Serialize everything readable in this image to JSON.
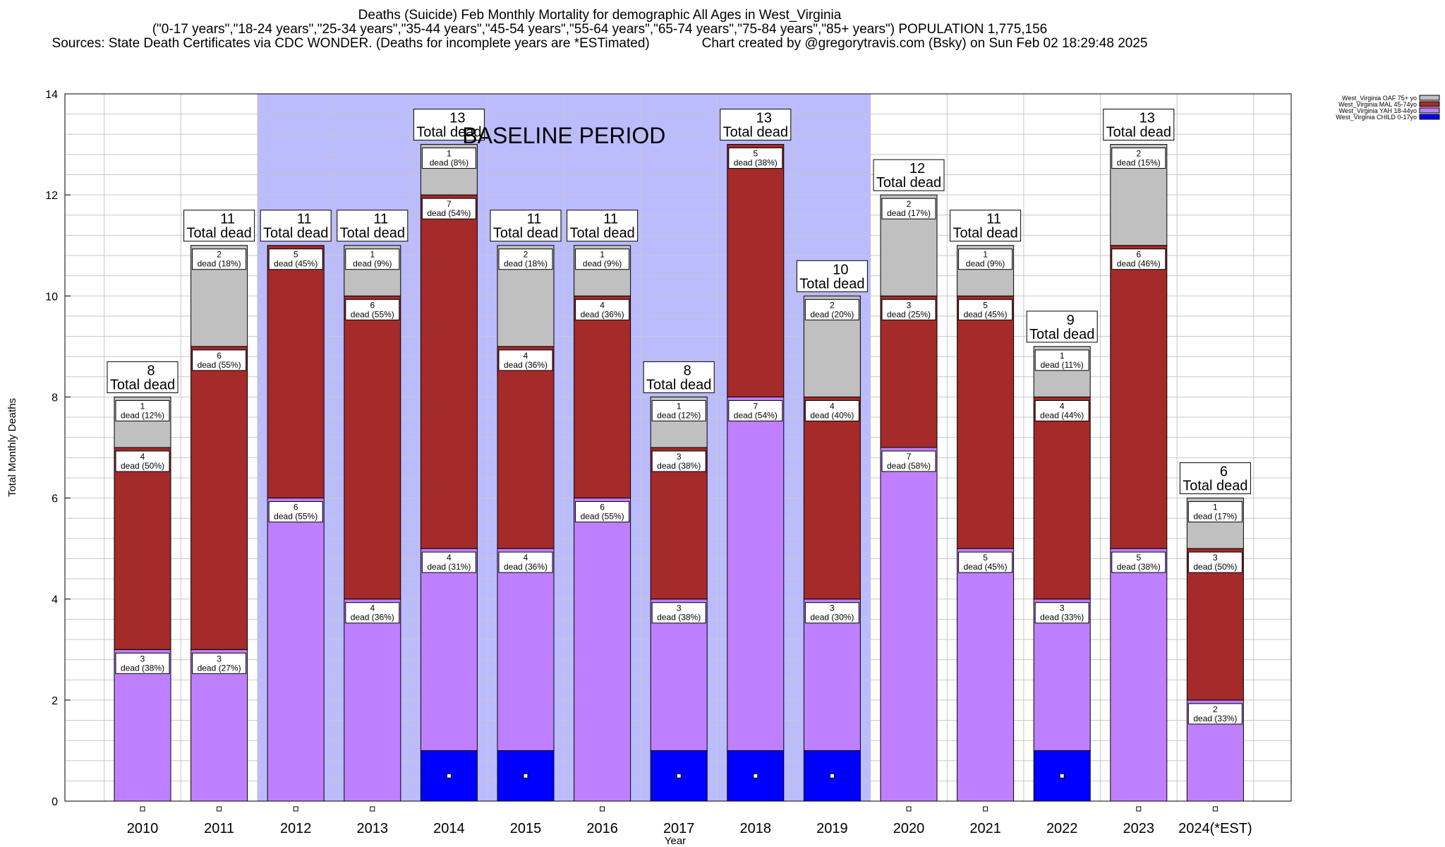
{
  "title_lines": [
    "Deaths (Suicide) Feb Monthly Mortality for demographic All Ages in West_Virginia",
    "(\"0-17 years\",\"18-24 years\",\"25-34 years\",\"35-44 years\",\"45-54 years\",\"55-64 years\",\"65-74 years\",\"75-84 years\",\"85+ years\") POPULATION 1,775,156",
    "Sources: State Death Certificates via CDC WONDER. (Deaths for incomplete years are *ESTimated)              Chart created by @gregorytravis.com (Bsky) on Sun Feb 02 18:29:48 2025"
  ],
  "colors": {
    "child": "#0000ff",
    "yah": "#bf80ff",
    "mal": "#a52a2a",
    "oaf": "#c0c0c0",
    "baseline": "#bbbbff",
    "grid": "#c8c8c8"
  },
  "chart_data": {
    "type": "bar",
    "stacked": true,
    "xlabel": "Year",
    "ylabel": "Total Monthly Deaths",
    "ylim": [
      0,
      14
    ],
    "yticks": [
      "0",
      "2",
      "4",
      "6",
      "8",
      "10",
      "12",
      "14"
    ],
    "grid": true,
    "categories": [
      "2010",
      "2011",
      "2012",
      "2013",
      "2014",
      "2015",
      "2016",
      "2017",
      "2018",
      "2019",
      "2020",
      "2021",
      "2022",
      "2023",
      "2024(*EST)"
    ],
    "series": [
      {
        "name": "West_Virginia CHILD 0-17yo",
        "key": "child",
        "values": [
          0,
          0,
          0,
          0,
          1,
          1,
          0,
          1,
          1,
          1,
          0,
          0,
          1,
          0,
          0
        ]
      },
      {
        "name": "West_Virginia YAH 18-44yo",
        "key": "yah",
        "values": [
          3,
          3,
          6,
          4,
          4,
          4,
          6,
          3,
          7,
          3,
          7,
          5,
          3,
          5,
          2
        ]
      },
      {
        "name": "West_Virginia MAL 45-74yo",
        "key": "mal",
        "values": [
          4,
          6,
          5,
          6,
          7,
          4,
          4,
          3,
          5,
          4,
          3,
          5,
          4,
          6,
          3
        ]
      },
      {
        "name": "West_Virginia OAF 75+ yo",
        "key": "oaf",
        "values": [
          1,
          2,
          0,
          1,
          1,
          2,
          1,
          1,
          0,
          2,
          2,
          1,
          1,
          2,
          1
        ]
      }
    ],
    "segment_labels": {
      "yah": [
        "dead (38%)",
        "dead (27%)",
        "dead (55%)",
        "dead (36%)",
        "dead (31%)",
        "dead (36%)",
        "dead (55%)",
        "dead (38%)",
        "dead (54%)",
        "dead (30%)",
        "dead (58%)",
        "dead (45%)",
        "dead (33%)",
        "dead (38%)",
        "dead (33%)"
      ],
      "mal": [
        "dead (50%)",
        "dead (55%)",
        "dead (45%)",
        "dead (55%)",
        "dead (54%)",
        "dead (36%)",
        "dead (36%)",
        "dead (38%)",
        "dead (38%)",
        "dead (40%)",
        "dead (25%)",
        "dead (45%)",
        "dead (44%)",
        "dead (46%)",
        "dead (50%)"
      ],
      "oaf": [
        "dead (12%)",
        "dead (18%)",
        "",
        "dead (9%)",
        "dead (8%)",
        "dead (18%)",
        "dead (9%)",
        "dead (12%)",
        "",
        "dead (20%)",
        "dead (17%)",
        "dead (9%)",
        "dead (11%)",
        "dead (15%)",
        "dead (17%)"
      ]
    },
    "totals": [
      8,
      11,
      11,
      11,
      13,
      11,
      11,
      8,
      13,
      10,
      12,
      11,
      9,
      13,
      6
    ],
    "total_label": "Total dead",
    "baseline": {
      "label": "BASELINE PERIOD",
      "from": "2012",
      "to": "2019"
    },
    "legend_placement": "top-right",
    "legend_order": [
      "oaf",
      "mal",
      "yah",
      "child"
    ]
  }
}
